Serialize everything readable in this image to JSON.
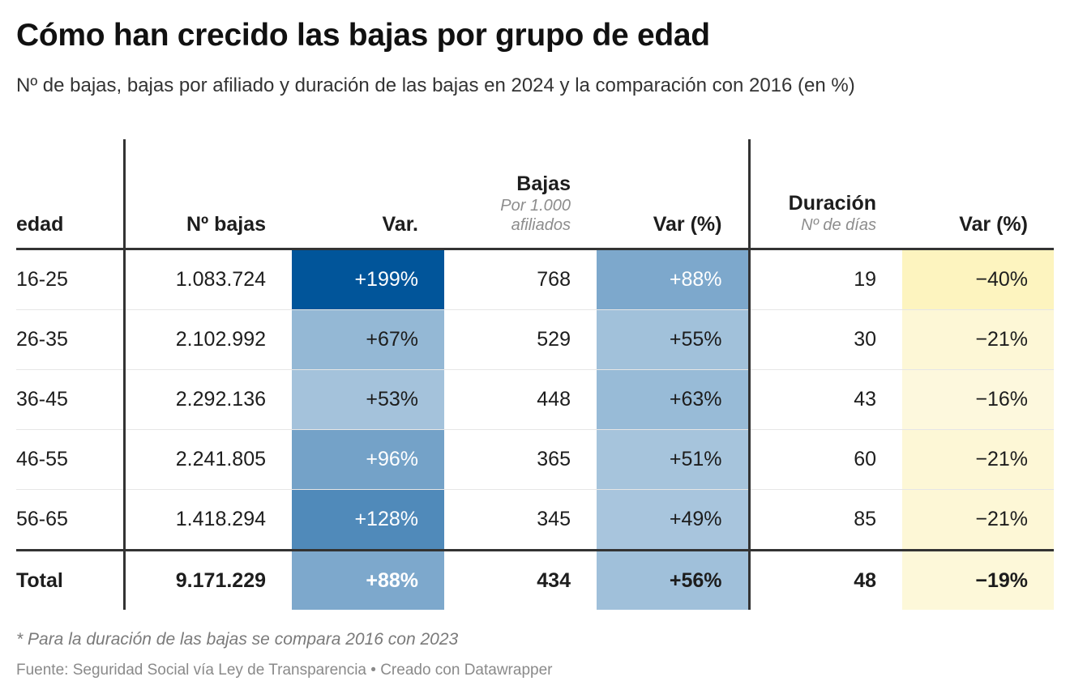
{
  "title": "Cómo han crecido las bajas por grupo de edad",
  "subtitle": "Nº de bajas, bajas por afiliado y duración de las bajas en 2024 y la comparación con 2016 (en %)",
  "chart_data": {
    "type": "table",
    "columns": [
      {
        "key": "edad",
        "label": "edad",
        "sublabel": ""
      },
      {
        "key": "n_bajas",
        "label": "Nº bajas",
        "sublabel": ""
      },
      {
        "key": "var_n",
        "label": "Var.",
        "sublabel": ""
      },
      {
        "key": "bajas_afil",
        "label": "Bajas",
        "sublabel": "Por 1.000 afiliados"
      },
      {
        "key": "var_afil",
        "label": "Var (%)",
        "sublabel": ""
      },
      {
        "key": "duracion",
        "label": "Duración",
        "sublabel": "Nº de días"
      },
      {
        "key": "var_dur",
        "label": "Var (%)",
        "sublabel": ""
      }
    ],
    "rows": [
      {
        "edad": "16-25",
        "n_bajas": "1.083.724",
        "var_n": "+199%",
        "bajas_afil": "768",
        "var_afil": "+88%",
        "duracion": "19",
        "var_dur": "−40%"
      },
      {
        "edad": "26-35",
        "n_bajas": "2.102.992",
        "var_n": "+67%",
        "bajas_afil": "529",
        "var_afil": "+55%",
        "duracion": "30",
        "var_dur": "−21%"
      },
      {
        "edad": "36-45",
        "n_bajas": "2.292.136",
        "var_n": "+53%",
        "bajas_afil": "448",
        "var_afil": "+63%",
        "duracion": "43",
        "var_dur": "−16%"
      },
      {
        "edad": "46-55",
        "n_bajas": "2.241.805",
        "var_n": "+96%",
        "bajas_afil": "365",
        "var_afil": "+51%",
        "duracion": "60",
        "var_dur": "−21%"
      },
      {
        "edad": "56-65",
        "n_bajas": "1.418.294",
        "var_n": "+128%",
        "bajas_afil": "345",
        "var_afil": "+49%",
        "duracion": "85",
        "var_dur": "−21%"
      }
    ],
    "total": {
      "edad": "Total",
      "n_bajas": "9.171.229",
      "var_n": "+88%",
      "bajas_afil": "434",
      "var_afil": "+56%",
      "duracion": "48",
      "var_dur": "−19%"
    },
    "heat_values": {
      "var_n": [
        199,
        67,
        53,
        96,
        128,
        88
      ],
      "var_afil": [
        88,
        55,
        63,
        51,
        49,
        56
      ],
      "var_dur": [
        -40,
        -21,
        -16,
        -21,
        -21,
        -19
      ]
    },
    "heat_colors": {
      "blue_low": "#b2cce1",
      "blue_high": "#00549a",
      "yellow_low": "#fdf9e4",
      "yellow_high": "#fdf4bf"
    }
  },
  "footnote": "* Para la duración de las bajas se compara 2016 con 2023",
  "source": "Fuente: Seguridad Social vía Ley de Transparencia • Creado con Datawrapper"
}
